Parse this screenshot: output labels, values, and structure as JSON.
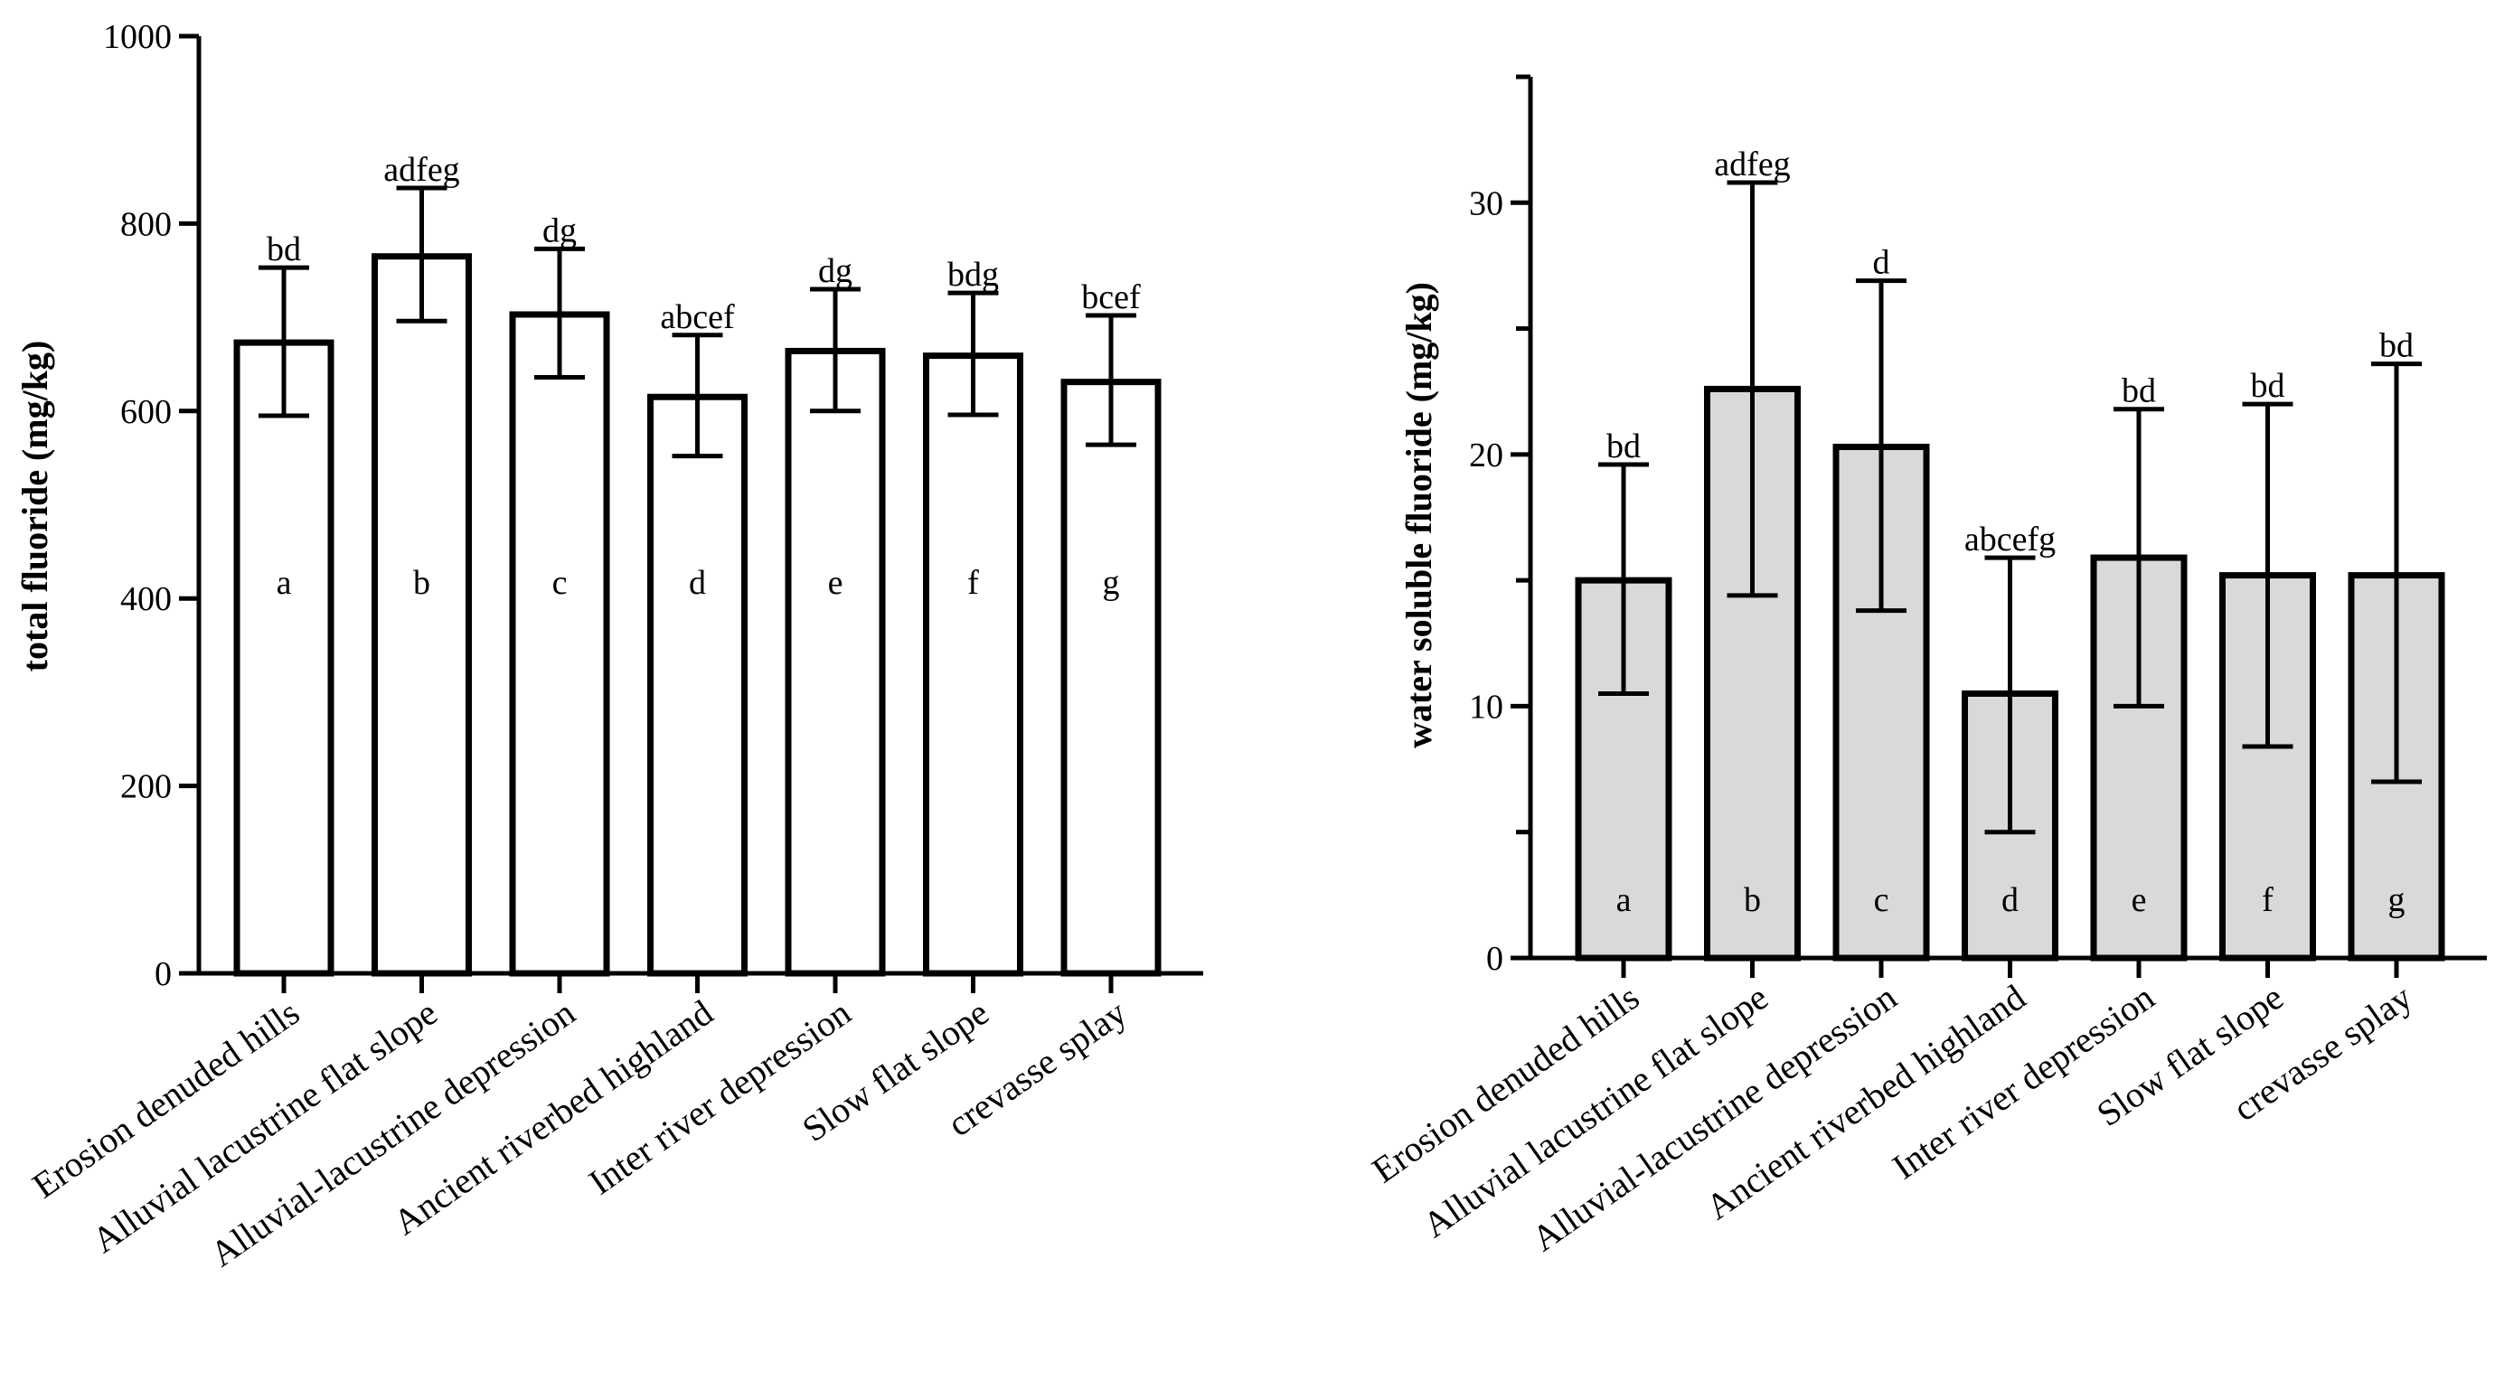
{
  "chart_data": [
    {
      "type": "bar",
      "ylabel": "total fluoride  (mg/kg)",
      "xlabel": "",
      "ylim": [
        0,
        1000
      ],
      "yticks": [
        0,
        200,
        400,
        600,
        800,
        1000
      ],
      "bar_color": "#ffffff",
      "categories": [
        "Erosion denuded hills",
        "Alluvial lacustrine  flat slope",
        "Alluvial-lacustrine depression",
        "Ancient riverbed highland",
        "Inter river depression",
        "Slow flat slope",
        "crevasse splay"
      ],
      "values": [
        673,
        765,
        703,
        615,
        664,
        659,
        631
      ],
      "err_low": [
        595,
        696,
        636,
        552,
        600,
        596,
        564
      ],
      "err_high": [
        753,
        838,
        773,
        681,
        730,
        726,
        702
      ],
      "sig_labels": [
        "bd",
        "adfeg",
        "dg",
        "abcef",
        "dg",
        "bdg",
        "bcef"
      ],
      "group_labels": [
        "a",
        "b",
        "c",
        "d",
        "e",
        "f",
        "g"
      ]
    },
    {
      "type": "bar",
      "ylabel": "water soluble fluoride  (mg/kg)",
      "xlabel": "",
      "ylim": [
        0,
        35
      ],
      "yticks": [
        0,
        10,
        20,
        30
      ],
      "minor_ticks": [
        5,
        15,
        25,
        35
      ],
      "bar_color": "#d9d9d9",
      "categories": [
        "Erosion denuded hills",
        "Alluvial lacustrine  flat slope",
        "Alluvial-lacustrine depression",
        "Ancient riverbed highland",
        "Inter river depression",
        "Slow flat slope",
        "crevasse splay"
      ],
      "values": [
        15.0,
        22.6,
        20.3,
        10.5,
        15.9,
        15.2,
        15.2
      ],
      "err_low": [
        10.5,
        14.4,
        13.8,
        5.0,
        10.0,
        8.4,
        7.0
      ],
      "err_high": [
        19.6,
        30.8,
        26.9,
        15.9,
        21.8,
        22.0,
        23.6
      ],
      "sig_labels": [
        "bd",
        "adfeg",
        "d",
        "abcefg",
        "bd",
        "bd",
        "bd"
      ],
      "group_labels": [
        "a",
        "b",
        "c",
        "d",
        "e",
        "f",
        "g"
      ]
    }
  ]
}
